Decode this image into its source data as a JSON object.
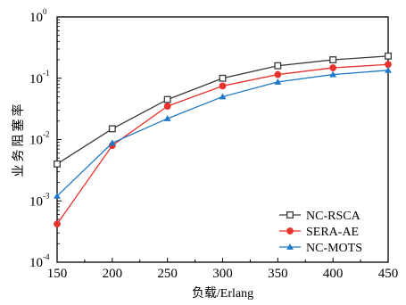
{
  "chart_data": {
    "type": "line",
    "xlabel": "负载/Erlang",
    "ylabel": "业务阻塞率",
    "x": [
      150,
      200,
      250,
      300,
      350,
      400,
      450
    ],
    "xlim": [
      150,
      450
    ],
    "ylim": [
      0.0001,
      1
    ],
    "yscale": "log",
    "xticks": [
      "150",
      "200",
      "250",
      "300",
      "350",
      "400",
      "450"
    ],
    "yticks": [
      {
        "base": "10",
        "exp": "-4"
      },
      {
        "base": "10",
        "exp": "-3"
      },
      {
        "base": "10",
        "exp": "-2"
      },
      {
        "base": "10",
        "exp": "-1"
      },
      {
        "base": "10",
        "exp": "0"
      }
    ],
    "grid": false,
    "legend_position": "bottom-right",
    "series": [
      {
        "name": "NC-RSCA",
        "color": "#3a3a3a",
        "marker": "open-square",
        "values": [
          0.004,
          0.015,
          0.045,
          0.1,
          0.16,
          0.2,
          0.23
        ]
      },
      {
        "name": "SERA-AE",
        "color": "#e8322e",
        "marker": "filled-circle",
        "values": [
          0.00042,
          0.008,
          0.035,
          0.075,
          0.115,
          0.148,
          0.168
        ]
      },
      {
        "name": "NC-MOTS",
        "color": "#1f78c8",
        "marker": "filled-triangle",
        "values": [
          0.0012,
          0.0088,
          0.022,
          0.05,
          0.087,
          0.115,
          0.135
        ]
      }
    ]
  }
}
